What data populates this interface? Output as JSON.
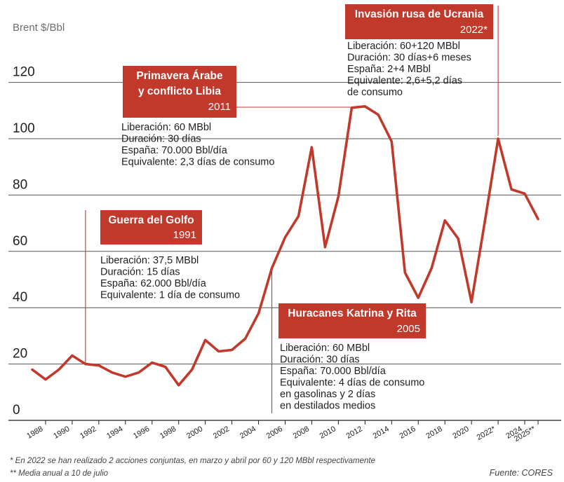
{
  "chart_data": {
    "type": "line",
    "ylabel": "Brent $/Bbl",
    "ylim": [
      0,
      120
    ],
    "yticks": [
      0,
      20,
      40,
      60,
      80,
      100,
      120
    ],
    "x_ticks": [
      "1988",
      "1990",
      "1992",
      "1994",
      "1996",
      "1998",
      "2000",
      "2002",
      "2004",
      "2006",
      "2008",
      "2010",
      "2012",
      "2014",
      "2016",
      "2018",
      "2020",
      "2022*",
      "2024",
      "2025**"
    ],
    "series": [
      {
        "name": "Brent",
        "x": [
          1987,
          1988,
          1989,
          1990,
          1991,
          1992,
          1993,
          1994,
          1995,
          1996,
          1997,
          1998,
          1999,
          2000,
          2001,
          2002,
          2003,
          2004,
          2005,
          2006,
          2007,
          2008,
          2009,
          2010,
          2011,
          2012,
          2013,
          2014,
          2015,
          2016,
          2017,
          2018,
          2019,
          2020,
          2021,
          2022,
          2023,
          2024,
          2025
        ],
        "values": [
          18,
          14.5,
          18,
          23,
          20,
          19.5,
          17,
          15.5,
          17,
          20.5,
          19,
          12.5,
          18,
          28.5,
          24.5,
          25,
          29,
          38,
          54,
          65,
          72.5,
          97,
          61.5,
          79.5,
          111,
          111.5,
          108.5,
          99,
          52.5,
          43.5,
          54,
          71,
          64.5,
          42,
          70.5,
          100,
          82,
          80.5,
          71.5
        ]
      }
    ],
    "annotations": [
      {
        "title_lines": [
          "Guerra del Golfo"
        ],
        "year": "1991",
        "details": [
          "Liberación: 37,5 MBbl",
          "Duración: 15 días",
          "España: 62.000 Bbl/día",
          "Equivalente: 1 día de consumo"
        ]
      },
      {
        "title_lines": [
          "Primavera Árabe",
          "y conflicto Libia"
        ],
        "year": "2011",
        "details": [
          "Liberación: 60 MBbl",
          "Duración: 30 días",
          "España: 70.000 Bbl/día",
          "Equivalente: 2,3 días de consumo"
        ]
      },
      {
        "title_lines": [
          "Huracanes Katrina y Rita"
        ],
        "year": "2005",
        "details": [
          "Liberación: 60 MBbl",
          "Duración: 30 días",
          "España: 70.000 Bbl/día",
          "Equivalente: 4 días de consumo",
          "en gasolinas y 2 días",
          "en destilados medios"
        ]
      },
      {
        "title_lines": [
          "Invasión rusa de Ucrania"
        ],
        "year": "2022*",
        "details": [
          "Liberación: 60+120 MBbl",
          "Duración: 30 días+6 meses",
          "España: 2+4 MBbl",
          "Equivalente: 2,6+5,2 días",
          "de consumo"
        ]
      }
    ],
    "footnotes": [
      "* En 2022 se han realizado 2 acciones conjuntas, en marzo y abril por 60 y 120 MBbl respectivamente",
      "** Media anual a 10 de julio"
    ],
    "source": "Fuente: CORES"
  },
  "colors": {
    "accent": "#c0392b",
    "grid": "#555555",
    "text": "#222222",
    "muted": "#7a7a7a",
    "box_text": "#ffffff"
  }
}
